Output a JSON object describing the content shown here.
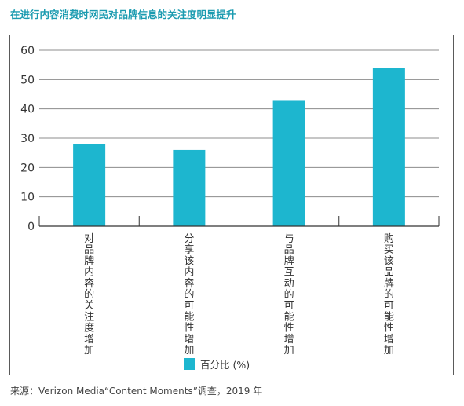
{
  "chart_data": {
    "type": "bar",
    "title": "在进行内容消费时网民对品牌信息的关注度明显提升",
    "categories": [
      "对品牌内容的关注度增加",
      "分享该内容的可能性增加",
      "与品牌互动的可能性增加",
      "购买该品牌的可能性增加"
    ],
    "series": [
      {
        "name": "百分比 (%)",
        "values": [
          28,
          26,
          43,
          54
        ],
        "color": "#1db6cf"
      }
    ],
    "ylim": [
      0,
      60
    ],
    "yticks": [
      0,
      10,
      20,
      30,
      40,
      50,
      60
    ],
    "grid": true,
    "legend_position": "bottom",
    "source": "来源：Verizon Media“Content Moments”调查，2019 年"
  }
}
